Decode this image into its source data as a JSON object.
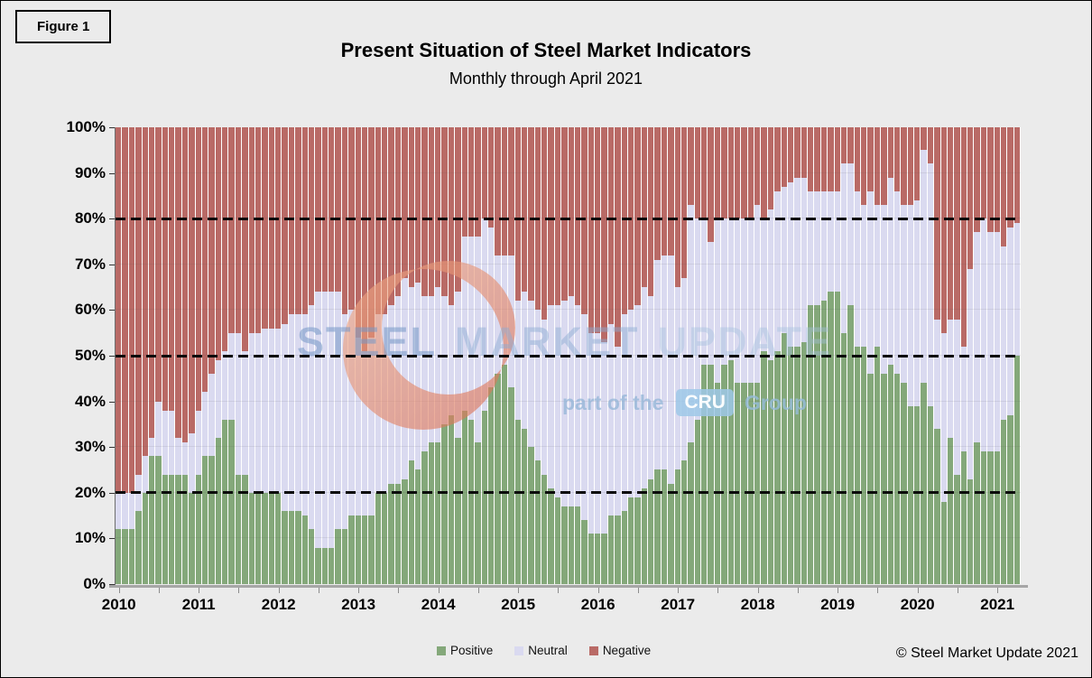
{
  "figure_label": "Figure 1",
  "title": "Present Situation of Steel Market Indicators",
  "subtitle": "Monthly through April 2021",
  "copyright": "© Steel Market Update 2021",
  "watermark": {
    "word1": "STEEL",
    "word2": "MARKET",
    "word3": "UPDATE",
    "tagline_prefix": "part of the",
    "tagline_logo": "CRU",
    "tagline_suffix": "Group",
    "crescent_color_light": "#f2b08c",
    "crescent_color_dark": "#d96a4f"
  },
  "legend": {
    "items": [
      {
        "label": "Positive",
        "color": "#84a87a"
      },
      {
        "label": "Neutral",
        "color": "#dadaf0"
      },
      {
        "label": "Negative",
        "color": "#b96a66"
      }
    ]
  },
  "chart_data": {
    "type": "bar",
    "stacked": true,
    "units": "percent of respondents",
    "x_start": "2010-01",
    "x_end": "2021-04",
    "months_count": 136,
    "year_labels": [
      "2010",
      "2011",
      "2012",
      "2013",
      "2014",
      "2015",
      "2016",
      "2017",
      "2018",
      "2019",
      "2020",
      "2021"
    ],
    "y_ticks": [
      "0%",
      "10%",
      "20%",
      "30%",
      "40%",
      "50%",
      "60%",
      "70%",
      "80%",
      "90%",
      "100%"
    ],
    "ylim": [
      0,
      100
    ],
    "grid": "horizontal-light",
    "dashed_reference_lines": [
      20,
      50,
      80
    ],
    "legend_position": "bottom",
    "series": [
      {
        "name": "Positive",
        "color": "#84a87a",
        "values": [
          12,
          12,
          12,
          16,
          20,
          28,
          28,
          24,
          24,
          24,
          24,
          20,
          24,
          28,
          28,
          32,
          36,
          36,
          24,
          24,
          20,
          20,
          20,
          20,
          20,
          16,
          16,
          16,
          15,
          12,
          8,
          8,
          8,
          12,
          12,
          15,
          15,
          15,
          15,
          20,
          20,
          22,
          22,
          23,
          27,
          25,
          29,
          31,
          31,
          35,
          37,
          32,
          38,
          36,
          31,
          38,
          43,
          46,
          48,
          43,
          36,
          34,
          30,
          27,
          24,
          21,
          19,
          17,
          17,
          17,
          14,
          11,
          11,
          11,
          15,
          15,
          16,
          19,
          19,
          21,
          23,
          25,
          25,
          22,
          25,
          27,
          31,
          36,
          48,
          48,
          44,
          48,
          49,
          44,
          44,
          44,
          44,
          51,
          49,
          51,
          55,
          52,
          52,
          53,
          61,
          61,
          62,
          64,
          64,
          55,
          61,
          52,
          52,
          46,
          52,
          46,
          48,
          46,
          44,
          39,
          39,
          44,
          39,
          34,
          18,
          32,
          24,
          29,
          23,
          31,
          29,
          29,
          29,
          36,
          37,
          50
        ]
      },
      {
        "name": "Neutral",
        "color": "#dadaf0",
        "values": [
          8,
          8,
          8,
          8,
          8,
          4,
          12,
          14,
          14,
          8,
          7,
          13,
          14,
          14,
          18,
          17,
          15,
          19,
          31,
          27,
          35,
          35,
          36,
          36,
          36,
          41,
          43,
          43,
          44,
          49,
          56,
          56,
          56,
          52,
          47,
          45,
          39,
          36,
          39,
          39,
          39,
          39,
          41,
          44,
          38,
          41,
          34,
          32,
          34,
          28,
          24,
          32,
          38,
          40,
          45,
          42,
          35,
          26,
          24,
          29,
          26,
          30,
          32,
          33,
          34,
          40,
          42,
          45,
          46,
          44,
          45,
          44,
          44,
          42,
          42,
          37,
          43,
          41,
          42,
          44,
          40,
          46,
          47,
          50,
          40,
          40,
          52,
          44,
          32,
          27,
          36,
          32,
          31,
          36,
          36,
          36,
          39,
          29,
          33,
          35,
          32,
          36,
          37,
          36,
          25,
          25,
          24,
          22,
          22,
          37,
          31,
          34,
          31,
          40,
          31,
          37,
          41,
          40,
          39,
          44,
          45,
          51,
          53,
          24,
          37,
          26,
          34,
          23,
          46,
          46,
          51,
          48,
          48,
          38,
          41,
          29
        ]
      },
      {
        "name": "Negative",
        "color": "#b96a66",
        "values": [
          80,
          80,
          80,
          76,
          72,
          68,
          60,
          62,
          62,
          68,
          69,
          67,
          62,
          58,
          54,
          51,
          49,
          45,
          45,
          49,
          45,
          45,
          44,
          44,
          44,
          43,
          41,
          41,
          41,
          39,
          36,
          36,
          36,
          36,
          41,
          40,
          46,
          49,
          46,
          41,
          41,
          39,
          37,
          33,
          35,
          34,
          37,
          37,
          35,
          37,
          39,
          36,
          24,
          24,
          24,
          20,
          22,
          28,
          28,
          28,
          38,
          36,
          38,
          40,
          42,
          39,
          39,
          38,
          37,
          39,
          41,
          45,
          45,
          47,
          43,
          48,
          41,
          40,
          39,
          35,
          37,
          29,
          28,
          28,
          35,
          33,
          17,
          20,
          20,
          25,
          20,
          20,
          20,
          20,
          20,
          20,
          17,
          20,
          18,
          14,
          13,
          12,
          11,
          11,
          14,
          14,
          14,
          14,
          14,
          8,
          8,
          14,
          17,
          14,
          17,
          17,
          11,
          14,
          17,
          17,
          16,
          5,
          8,
          42,
          45,
          42,
          42,
          48,
          31,
          23,
          20,
          23,
          23,
          26,
          22,
          21
        ]
      }
    ]
  }
}
